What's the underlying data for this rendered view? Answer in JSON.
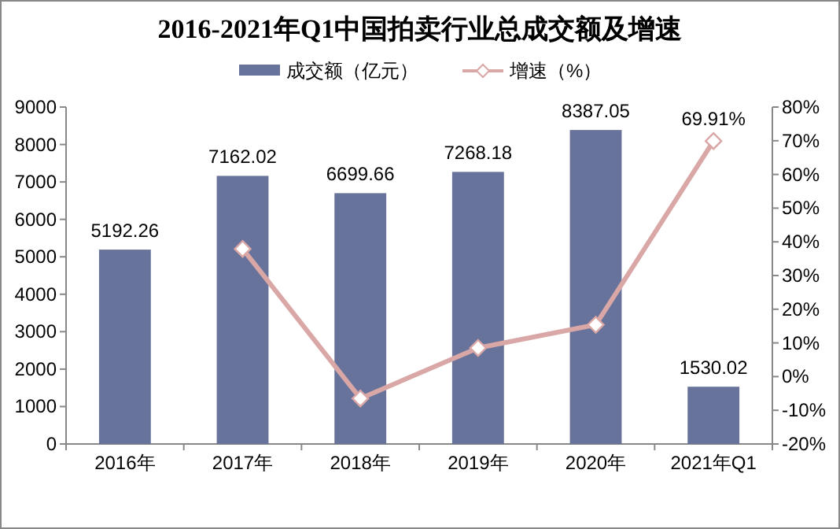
{
  "chart_data": {
    "type": "bar",
    "title": "2016-2021年Q1中国拍卖行业总成交额及增速",
    "categories": [
      "2016年",
      "2017年",
      "2018年",
      "2019年",
      "2020年",
      "2021年Q1"
    ],
    "series": [
      {
        "name": "成交额（亿元）",
        "color": "#67739a",
        "values": [
          5192.26,
          7162.02,
          6699.66,
          7268.18,
          8387.05,
          1530.02
        ],
        "value_labels": [
          "5192.26",
          "7162.02",
          "6699.66",
          "7268.18",
          "8387.05",
          "1530.02"
        ]
      },
      {
        "name": "增速（%）",
        "type": "line",
        "axis": "y2",
        "color": "#d9a7a5",
        "marker": "diamond",
        "values": [
          null,
          37.9,
          -6.5,
          8.5,
          15.4,
          69.91
        ],
        "value_labels": [
          null,
          null,
          null,
          null,
          null,
          "69.91%"
        ]
      }
    ],
    "ylim": [
      0,
      9000
    ],
    "yticks": [
      0,
      1000,
      2000,
      3000,
      4000,
      5000,
      6000,
      7000,
      8000,
      9000
    ],
    "y2lim": [
      -20,
      80
    ],
    "y2ticks": [
      {
        "value": -20,
        "label": "-20%"
      },
      {
        "value": -10,
        "label": "-10%"
      },
      {
        "value": 0,
        "label": "0%"
      },
      {
        "value": 10,
        "label": "10%"
      },
      {
        "value": 20,
        "label": "20%"
      },
      {
        "value": 30,
        "label": "30%"
      },
      {
        "value": 40,
        "label": "40%"
      },
      {
        "value": 50,
        "label": "50%"
      },
      {
        "value": 60,
        "label": "60%"
      },
      {
        "value": 70,
        "label": "70%"
      },
      {
        "value": 80,
        "label": "80%"
      }
    ],
    "grid": false,
    "legend": "top"
  }
}
